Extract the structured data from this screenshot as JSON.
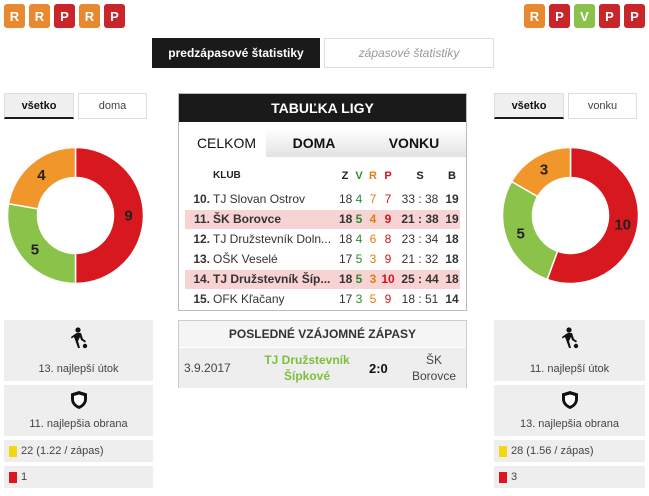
{
  "home": {
    "form": [
      "R",
      "R",
      "P",
      "R",
      "P"
    ],
    "filter_tabs": [
      "všetko",
      "doma"
    ],
    "donut": {
      "wins": 5,
      "draws": 4,
      "losses": 9
    },
    "attack": "13. najlepší útok",
    "defense": "11. najlepšia obrana",
    "yellow_cards": "22 (1.22 / zápas)",
    "red_cards": "1"
  },
  "away": {
    "form": [
      "R",
      "P",
      "V",
      "P",
      "P"
    ],
    "filter_tabs": [
      "všetko",
      "vonku"
    ],
    "donut": {
      "wins": 5,
      "draws": 3,
      "losses": 10
    },
    "attack": "11. najlepší útok",
    "defense": "13. najlepšia obrana",
    "yellow_cards": "28 (1.56 / zápas)",
    "red_cards": "3"
  },
  "stats_tabs": {
    "pre_match": "predzápasové štatistiky",
    "match": "zápasové štatistiky"
  },
  "league": {
    "title": "TABUĽKA LIGY",
    "tabs": [
      "CELKOM",
      "DOMA",
      "VONKU"
    ],
    "headers": {
      "club": "KLUB",
      "z": "Z",
      "v": "V",
      "r": "R",
      "p": "P",
      "s": "S",
      "b": "B"
    },
    "rows": [
      {
        "rank": "10.",
        "club": "TJ Slovan Ostrov",
        "z": "18",
        "v": "4",
        "r": "7",
        "p": "7",
        "s": "33 : 38",
        "b": "19",
        "highlight": false
      },
      {
        "rank": "11.",
        "club": "ŠK Borovce",
        "z": "18",
        "v": "5",
        "r": "4",
        "p": "9",
        "s": "21 : 38",
        "b": "19",
        "highlight": true
      },
      {
        "rank": "12.",
        "club": "TJ Družstevník Doln...",
        "z": "18",
        "v": "4",
        "r": "6",
        "p": "8",
        "s": "23 : 34",
        "b": "18",
        "highlight": false
      },
      {
        "rank": "13.",
        "club": "OŠK Veselé",
        "z": "17",
        "v": "5",
        "r": "3",
        "p": "9",
        "s": "21 : 32",
        "b": "18",
        "highlight": false
      },
      {
        "rank": "14.",
        "club": "TJ Družstevník Šíp...",
        "z": "18",
        "v": "5",
        "r": "3",
        "p": "10",
        "s": "25 : 44",
        "b": "18",
        "highlight": true
      },
      {
        "rank": "15.",
        "club": "OFK Kľačany",
        "z": "17",
        "v": "3",
        "r": "5",
        "p": "9",
        "s": "18 : 51",
        "b": "14",
        "highlight": false
      }
    ]
  },
  "h2h": {
    "title": "POSLEDNÉ VZÁJOMNÉ ZÁPASY",
    "matches": [
      {
        "date": "3.9.2017",
        "home": "TJ Družstevník Šípkové",
        "score": "2:0",
        "away": "ŠK Borovce"
      }
    ]
  },
  "colors": {
    "win": "#8bc34a",
    "draw": "#f0962a",
    "loss": "#d7191f",
    "dark": "#1a1a1a",
    "highlight": "#f8d3d3"
  }
}
